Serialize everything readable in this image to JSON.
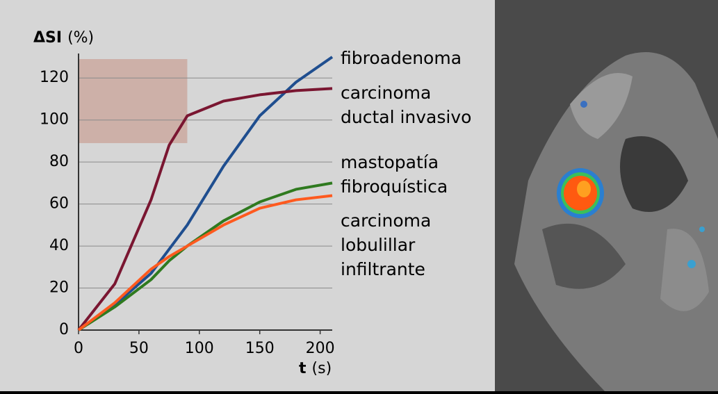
{
  "chart_data": {
    "type": "line",
    "ylabel": [
      "ΔSI",
      "(%)"
    ],
    "xlabel": [
      "t",
      "(s)"
    ],
    "xlim": [
      0,
      210
    ],
    "xticks": [
      0,
      50,
      100,
      150,
      200
    ],
    "ylim": [
      0,
      130
    ],
    "yticks": [
      0,
      20,
      40,
      60,
      80,
      100,
      120
    ],
    "grid": true,
    "highlight": {
      "x": [
        0,
        90
      ],
      "y": [
        89,
        129
      ],
      "color": "#c9a398"
    },
    "series": [
      {
        "name": [
          "fibroadenoma"
        ],
        "color": "#1f4e8f",
        "x": [
          0,
          30,
          60,
          90,
          120,
          150,
          180,
          210
        ],
        "values": [
          0,
          12,
          27,
          50,
          78,
          102,
          118,
          130
        ]
      },
      {
        "name": [
          "carcinoma",
          "ductal invasivo"
        ],
        "color": "#7a1631",
        "x": [
          0,
          30,
          60,
          75,
          90,
          120,
          150,
          180,
          210
        ],
        "values": [
          0,
          22,
          62,
          88,
          102,
          109,
          112,
          114,
          115
        ]
      },
      {
        "name": [
          "mastopatía",
          "fibroquística"
        ],
        "color": "#2f7a1f",
        "x": [
          0,
          30,
          60,
          75,
          90,
          120,
          150,
          180,
          210
        ],
        "values": [
          0,
          11,
          24,
          33,
          40,
          52,
          61,
          67,
          70
        ]
      },
      {
        "name": [
          "carcinoma",
          "lobulillar",
          "infiltrante"
        ],
        "color": "#ff5a1f",
        "x": [
          0,
          30,
          60,
          75,
          90,
          120,
          150,
          180,
          210
        ],
        "values": [
          0,
          13,
          29,
          35,
          40,
          50,
          58,
          62,
          64
        ]
      }
    ]
  }
}
